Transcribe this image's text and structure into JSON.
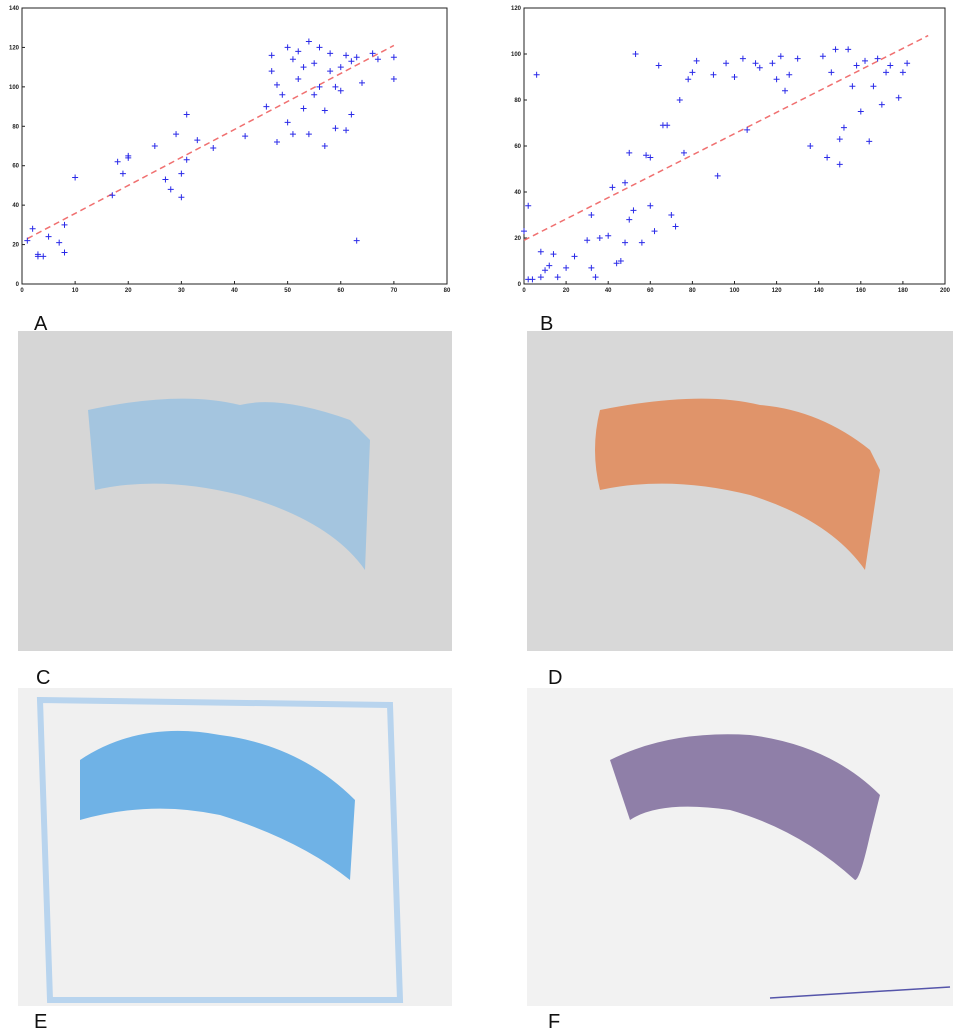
{
  "chart_data": [
    {
      "type": "scatter",
      "color": "#2a2ae8",
      "marker": "+",
      "x": [
        1,
        2,
        3,
        3,
        4,
        5,
        7,
        8,
        8,
        10,
        17,
        18,
        19,
        20,
        20,
        25,
        27,
        28,
        29,
        30,
        30,
        31,
        31,
        33,
        36,
        42,
        46,
        47,
        47,
        48,
        48,
        49,
        50,
        50,
        51,
        51,
        52,
        52,
        53,
        53,
        54,
        54,
        55,
        55,
        56,
        56,
        57,
        57,
        58,
        58,
        59,
        59,
        60,
        60,
        61,
        61,
        62,
        62,
        63,
        63,
        64,
        66,
        67,
        70,
        70
      ],
      "values": [
        22,
        28,
        15,
        14,
        14,
        24,
        21,
        30,
        16,
        54,
        45,
        62,
        56,
        65,
        64,
        70,
        53,
        48,
        76,
        56,
        44,
        63,
        86,
        73,
        69,
        75,
        90,
        116,
        108,
        72,
        101,
        96,
        82,
        120,
        76,
        114,
        104,
        118,
        89,
        110,
        123,
        76,
        112,
        96,
        100,
        120,
        88,
        70,
        108,
        117,
        100,
        79,
        98,
        110,
        116,
        78,
        86,
        113,
        115,
        22,
        102,
        117,
        114,
        115,
        104
      ],
      "trend": {
        "x": [
          1,
          70
        ],
        "values": [
          23,
          121
        ],
        "color": "#f07070"
      },
      "xlim": [
        0,
        80
      ],
      "xticks": [
        0,
        10,
        20,
        30,
        40,
        50,
        60,
        70,
        80
      ],
      "ylim": [
        0,
        140
      ],
      "yticks": [
        0,
        20,
        40,
        60,
        80,
        100,
        120,
        140
      ]
    },
    {
      "type": "scatter",
      "color": "#2a2ae8",
      "marker": "+",
      "x": [
        0,
        2,
        2,
        4,
        6,
        8,
        8,
        10,
        12,
        14,
        16,
        20,
        24,
        30,
        32,
        32,
        34,
        36,
        40,
        42,
        44,
        46,
        48,
        48,
        50,
        50,
        52,
        53,
        56,
        58,
        60,
        60,
        62,
        64,
        66,
        68,
        70,
        72,
        74,
        76,
        78,
        80,
        82,
        90,
        92,
        96,
        100,
        104,
        106,
        110,
        112,
        118,
        120,
        122,
        124,
        126,
        130,
        136,
        142,
        144,
        146,
        148,
        150,
        150,
        152,
        154,
        156,
        158,
        160,
        162,
        164,
        166,
        168,
        170,
        172,
        174,
        178,
        180,
        182
      ],
      "values": [
        23,
        34,
        2,
        2,
        91,
        3,
        14,
        6,
        8,
        13,
        3,
        7,
        12,
        19,
        30,
        7,
        3,
        20,
        21,
        42,
        9,
        10,
        18,
        44,
        28,
        57,
        32,
        100,
        18,
        56,
        55,
        34,
        23,
        95,
        69,
        69,
        30,
        25,
        80,
        57,
        89,
        92,
        97,
        91,
        47,
        96,
        90,
        98,
        67,
        96,
        94,
        96,
        89,
        99,
        84,
        91,
        98,
        60,
        99,
        55,
        92,
        102,
        63,
        52,
        68,
        102,
        86,
        95,
        75,
        97,
        62,
        86,
        98,
        78,
        92,
        95,
        81,
        92,
        96
      ],
      "trend": {
        "x": [
          0,
          192
        ],
        "values": [
          19,
          108
        ],
        "color": "#f07070"
      },
      "xlim": [
        0,
        200
      ],
      "xticks": [
        0,
        20,
        40,
        60,
        80,
        100,
        120,
        140,
        160,
        180,
        200
      ],
      "ylim": [
        0,
        120
      ],
      "yticks": [
        0,
        20,
        40,
        60,
        80,
        100,
        120
      ]
    }
  ],
  "panel_labels": [
    "A",
    "B",
    "C",
    "D",
    "E",
    "F"
  ]
}
